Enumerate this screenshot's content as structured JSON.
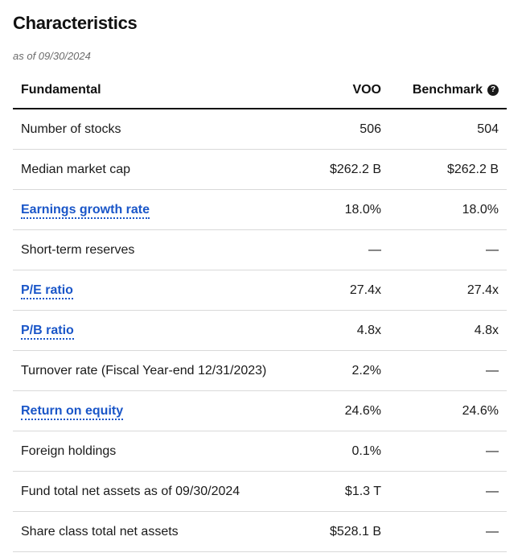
{
  "title": "Characteristics",
  "as_of": "as of 09/30/2024",
  "columns": {
    "fundamental": "Fundamental",
    "voo": "VOO",
    "benchmark": "Benchmark",
    "help_icon": "question-circle-icon",
    "help_glyph": "?"
  },
  "rows": [
    {
      "label": "Number of stocks",
      "link": false,
      "voo": "506",
      "benchmark": "504"
    },
    {
      "label": "Median market cap",
      "link": false,
      "voo": "$262.2 B",
      "benchmark": "$262.2 B"
    },
    {
      "label": "Earnings growth rate",
      "link": true,
      "voo": "18.0%",
      "benchmark": "18.0%"
    },
    {
      "label": "Short-term reserves",
      "link": false,
      "voo": "—",
      "benchmark": "—"
    },
    {
      "label": "P/E ratio",
      "link": true,
      "voo": "27.4x",
      "benchmark": "27.4x"
    },
    {
      "label": "P/B ratio",
      "link": true,
      "voo": "4.8x",
      "benchmark": "4.8x"
    },
    {
      "label": "Turnover rate (Fiscal Year-end 12/31/2023)",
      "link": false,
      "voo": "2.2%",
      "benchmark": "—"
    },
    {
      "label": "Return on equity",
      "link": true,
      "voo": "24.6%",
      "benchmark": "24.6%"
    },
    {
      "label": "Foreign holdings",
      "link": false,
      "voo": "0.1%",
      "benchmark": "—"
    },
    {
      "label": "Fund total net assets as of 09/30/2024",
      "link": false,
      "voo": "$1.3 T",
      "benchmark": "—"
    },
    {
      "label": "Share class total net assets",
      "link": false,
      "voo": "$528.1 B",
      "benchmark": "—"
    }
  ],
  "colors": {
    "link": "#1a56c8",
    "divider": "#d9d9d9",
    "header_rule": "#111111"
  }
}
